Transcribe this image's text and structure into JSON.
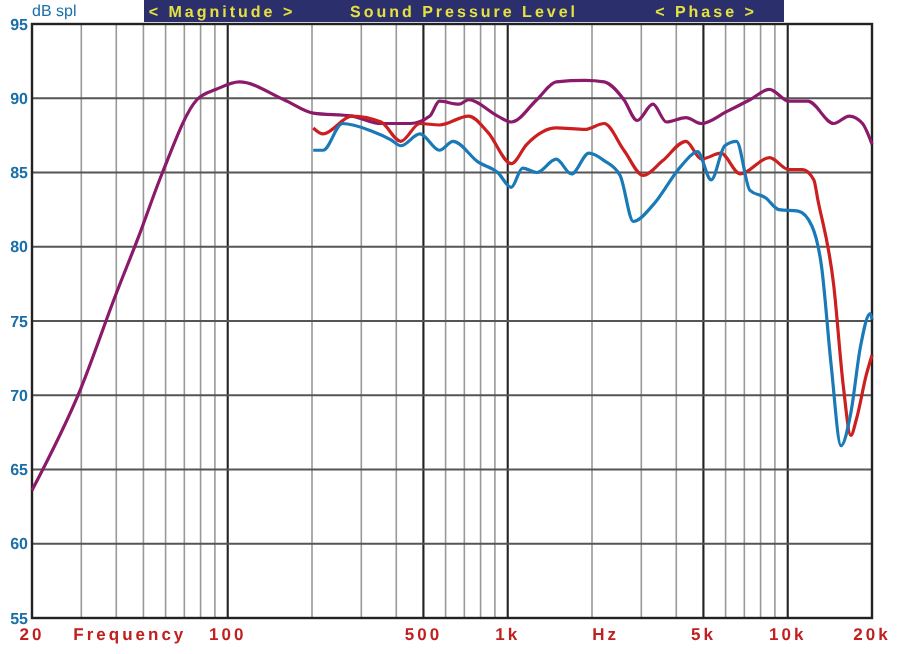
{
  "chart_data": {
    "type": "line",
    "title": "Sound Pressure Level",
    "ylabel": "dB spl",
    "xlabel": "Frequency",
    "annotations": [
      "< Magnitude >",
      "< Phase >",
      "Hz"
    ],
    "log": "x",
    "grid": true,
    "marker": "none",
    "line_style": "solid",
    "xlim": [
      20,
      20000
    ],
    "xticks": [
      20,
      100,
      500,
      {
        "value": 1000,
        "label": "1k"
      },
      {
        "value": 5000,
        "label": "5k"
      },
      {
        "value": 10000,
        "label": "10k"
      },
      {
        "value": 20000,
        "label": "20k"
      }
    ],
    "ylim": [
      55,
      95
    ],
    "yticks": [
      55,
      60,
      65,
      70,
      75,
      80,
      85,
      90,
      95
    ],
    "series": [
      {
        "color": "#8b1a6b",
        "x": [
          20,
          29.8,
          39.7,
          48.1,
          58.2,
          77.6,
          91,
          110,
          159,
          202,
          278,
          353,
          449,
          527,
          570,
          670,
          725,
          921,
          1030,
          1270,
          1490,
          1890,
          2210,
          2600,
          2900,
          3300,
          3690,
          4330,
          4920,
          6050,
          7330,
          8600,
          10100,
          11800,
          14600,
          16600,
          18500,
          20000
        ],
        "values": [
          63.6,
          70.4,
          76.7,
          80.7,
          84.9,
          89.9,
          90.6,
          91.1,
          89.9,
          89.0,
          88.8,
          88.3,
          88.3,
          88.8,
          89.8,
          89.6,
          89.9,
          88.8,
          88.4,
          89.9,
          91.1,
          91.2,
          91.1,
          89.9,
          88.5,
          89.6,
          88.4,
          88.7,
          88.3,
          89.1,
          89.9,
          90.6,
          89.8,
          89.8,
          88.3,
          88.8,
          88.3,
          86.9
        ]
      },
      {
        "color": "#cc1f1f",
        "x": [
          202,
          219,
          278,
          353,
          415,
          486,
          570,
          725,
          850,
          1030,
          1170,
          1490,
          1890,
          2210,
          2600,
          3050,
          3580,
          4330,
          4920,
          5770,
          6770,
          8600,
          10100,
          11300,
          12400,
          12800,
          14600,
          15800,
          16800,
          17600,
          19100,
          20000
        ],
        "values": [
          88.0,
          87.6,
          88.8,
          88.4,
          87.1,
          88.3,
          88.2,
          88.8,
          87.7,
          85.6,
          86.9,
          88.0,
          87.9,
          88.3,
          86.5,
          84.8,
          85.8,
          87.1,
          85.9,
          86.3,
          84.9,
          86.0,
          85.2,
          85.2,
          84.5,
          83.2,
          77.4,
          70.6,
          67.3,
          68.4,
          71.4,
          72.7
        ]
      },
      {
        "color": "#1a7ab8",
        "x": [
          202,
          219,
          257,
          326,
          383,
          415,
          486,
          570,
          638,
          785,
          921,
          1030,
          1130,
          1270,
          1490,
          1690,
          1950,
          2210,
          2520,
          2810,
          3300,
          4190,
          4760,
          5330,
          5960,
          6560,
          7330,
          8330,
          9310,
          10900,
          12200,
          13200,
          14300,
          15500,
          16800,
          18200,
          19700,
          20000
        ],
        "values": [
          86.5,
          86.5,
          88.3,
          87.8,
          87.2,
          86.8,
          87.6,
          86.5,
          87.1,
          85.7,
          85.0,
          84.0,
          85.3,
          85.0,
          85.9,
          84.9,
          86.3,
          85.8,
          84.8,
          81.7,
          82.8,
          85.5,
          86.4,
          84.5,
          86.8,
          87.1,
          83.8,
          83.3,
          82.5,
          82.4,
          81.4,
          78.7,
          72.0,
          66.6,
          68.8,
          73.3,
          75.5,
          75.1
        ]
      }
    ]
  }
}
